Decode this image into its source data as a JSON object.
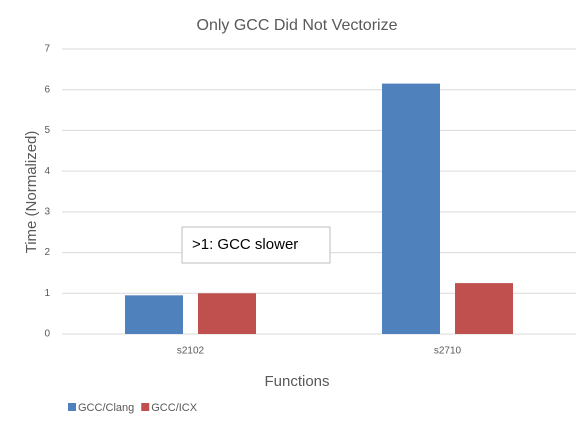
{
  "chart_data": {
    "type": "bar",
    "title": "Only GCC Did Not Vectorize",
    "annotation": ">1: GCC slower",
    "xlabel": "Functions",
    "ylabel": "Time (Normalized)",
    "categories": [
      "s2102",
      "s2710"
    ],
    "series": [
      {
        "name": "GCC/Clang",
        "color": "#4f81bd",
        "values": [
          0.95,
          6.15
        ]
      },
      {
        "name": "GCC/ICX",
        "color": "#c0504d",
        "values": [
          1.0,
          1.25
        ]
      }
    ],
    "ylim": [
      0,
      7
    ],
    "yticks": [
      0,
      1,
      2,
      3,
      4,
      5,
      6,
      7
    ],
    "grid": true,
    "legend": "bottom-left"
  }
}
